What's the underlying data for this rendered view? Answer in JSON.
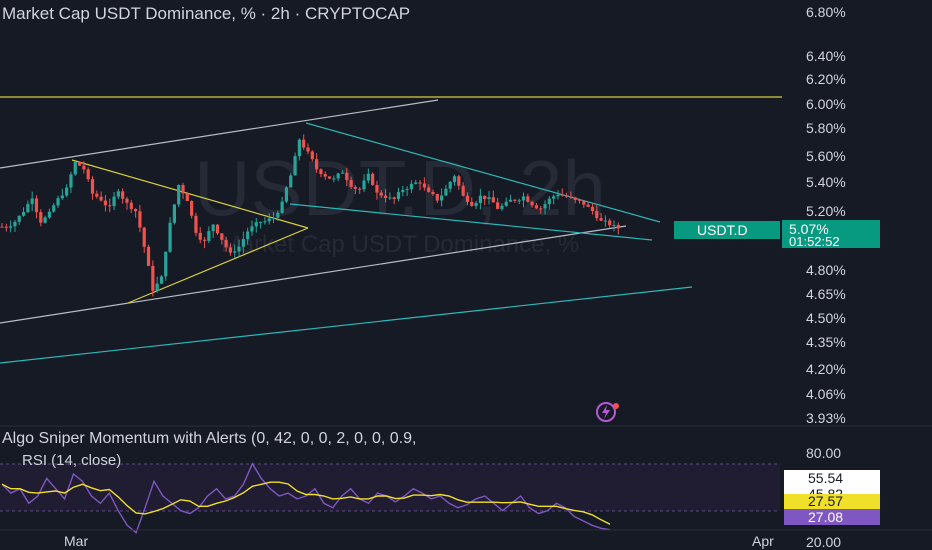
{
  "header": {
    "title": "Market Cap USDT Dominance, % · 2h · CRYPTOCAP"
  },
  "watermark": {
    "big": "USDT.D, 2h",
    "small": "Market Cap USDT Dominance, %"
  },
  "price_pane": {
    "price_label": "USDT.D",
    "price_value": "5.07%",
    "countdown": "01:52:52"
  },
  "indicators": {
    "algo": "Algo Sniper Momentum with Alerts (0, 42, 0, 0, 2, 0, 0, 0.9,",
    "rsi": "RSI (14, close)",
    "rsi_tags": [
      "55.54",
      "45.82",
      "27.57",
      "27.08"
    ]
  },
  "colors": {
    "background": "#161a25",
    "up_candle": "#26a69a",
    "down_candle": "#ef5350",
    "yellow_line": "#d9cf3a",
    "cyan_line": "#2bb8b8",
    "channel_line": "#b7bcc5",
    "rsi_line": "#7e57c2",
    "rsi_ma": "#f0e02a",
    "price_tag": "#089981"
  },
  "chart_data": {
    "type": "candlestick",
    "price_axis": {
      "labels": [
        "6.80%",
        "6.40%",
        "6.20%",
        "6.00%",
        "5.80%",
        "5.60%",
        "5.40%",
        "5.20%",
        "5.07%",
        "4.80%",
        "4.65%",
        "4.50%",
        "4.35%",
        "4.20%",
        "4.06%",
        "3.93%"
      ],
      "range": [
        3.93,
        6.85
      ],
      "scale": "log"
    },
    "time_axis": {
      "labels": [
        "Mar",
        "Apr"
      ]
    },
    "rsi_axis": {
      "labels": [
        "80.00",
        "20.00"
      ],
      "range": [
        20,
        80
      ]
    },
    "series_close_approx": [
      5.08,
      5.12,
      5.2,
      5.3,
      5.12,
      5.18,
      5.28,
      5.35,
      5.55,
      5.5,
      5.32,
      5.28,
      5.22,
      5.35,
      5.25,
      5.2,
      4.95,
      4.68,
      4.75,
      5.1,
      5.38,
      5.28,
      5.05,
      4.98,
      5.1,
      5.0,
      4.9,
      4.95,
      5.05,
      5.1,
      5.12,
      5.15,
      5.25,
      5.45,
      5.72,
      5.62,
      5.5,
      5.45,
      5.42,
      5.48,
      5.38,
      5.35,
      5.45,
      5.32,
      5.3,
      5.28,
      5.35,
      5.38,
      5.4,
      5.32,
      5.28,
      5.35,
      5.45,
      5.3,
      5.25,
      5.3,
      5.28,
      5.22,
      5.25,
      5.28,
      5.3,
      5.25,
      5.22,
      5.28,
      5.32,
      5.3,
      5.27,
      5.25,
      5.2,
      5.12,
      5.1,
      5.07
    ],
    "rsi_values_approx": [
      58,
      52,
      55,
      45,
      50,
      62,
      55,
      48,
      65,
      60,
      50,
      45,
      52,
      40,
      30,
      25,
      42,
      60,
      50,
      45,
      40,
      38,
      42,
      50,
      55,
      48,
      50,
      58,
      72,
      62,
      55,
      50,
      52,
      48,
      50,
      55,
      45,
      42,
      50,
      55,
      48,
      45,
      52,
      50,
      46,
      50,
      55,
      52,
      48,
      50,
      45,
      42,
      44,
      48,
      50,
      45,
      40,
      45,
      50,
      42,
      38,
      40,
      45,
      42,
      36,
      33,
      30,
      28,
      27
    ]
  }
}
